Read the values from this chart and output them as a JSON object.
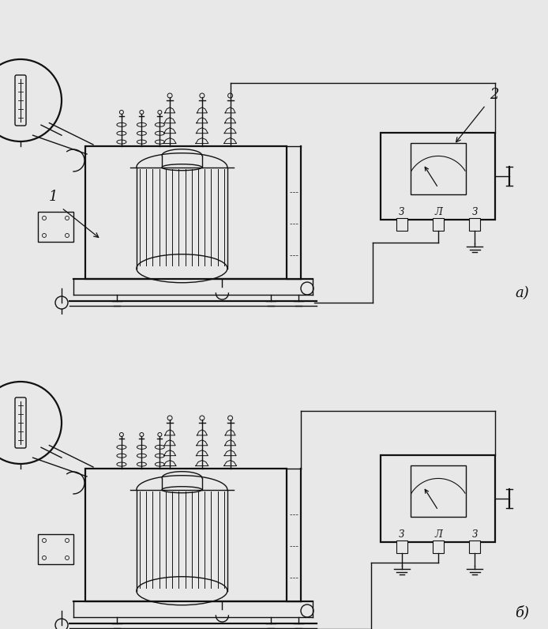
{
  "bg_color": "#e8e8e8",
  "line_color": "#111111",
  "lw": 1.0,
  "lw2": 1.6,
  "lw3": 2.0,
  "label_1": "1",
  "label_2": "2",
  "label_a": "а)",
  "label_b": "б)"
}
